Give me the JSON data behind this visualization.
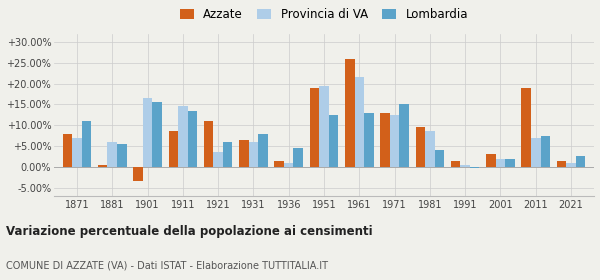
{
  "years": [
    1871,
    1881,
    1901,
    1911,
    1921,
    1931,
    1936,
    1951,
    1961,
    1971,
    1981,
    1991,
    2001,
    2011,
    2021
  ],
  "azzate": [
    8.0,
    0.5,
    -3.5,
    8.5,
    11.0,
    6.5,
    1.5,
    19.0,
    26.0,
    13.0,
    9.5,
    1.5,
    3.0,
    19.0,
    1.5
  ],
  "provincia": [
    7.0,
    6.0,
    16.5,
    14.5,
    3.5,
    6.0,
    1.0,
    19.5,
    21.5,
    12.5,
    8.5,
    0.5,
    2.0,
    7.0,
    1.0
  ],
  "lombardia": [
    11.0,
    5.5,
    15.5,
    13.5,
    6.0,
    8.0,
    4.5,
    12.5,
    13.0,
    15.0,
    4.0,
    -0.3,
    2.0,
    7.5,
    2.5
  ],
  "color_azzate": "#d2601a",
  "color_provincia": "#aecde8",
  "color_lombardia": "#5ba3c9",
  "title": "Variazione percentuale della popolazione ai censimenti",
  "subtitle": "COMUNE DI AZZATE (VA) - Dati ISTAT - Elaborazione TUTTITALIA.IT",
  "ylim": [
    -7.0,
    32.0
  ],
  "yticks": [
    -5.0,
    0.0,
    5.0,
    10.0,
    15.0,
    20.0,
    25.0,
    30.0
  ],
  "legend_labels": [
    "Azzate",
    "Provincia di VA",
    "Lombardia"
  ],
  "background_color": "#f0f0eb"
}
